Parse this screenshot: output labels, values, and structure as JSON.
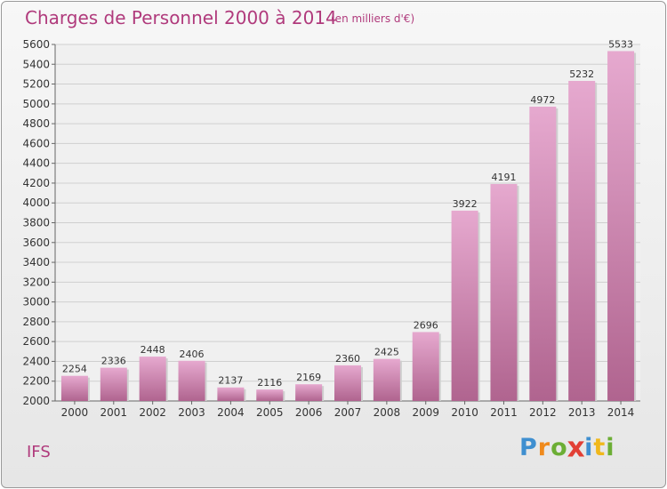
{
  "chart_data": {
    "type": "bar",
    "title": "Charges de Personnel 2000 à 2014",
    "subtitle": "(en milliers d'€)",
    "categories": [
      "2000",
      "2001",
      "2002",
      "2003",
      "2004",
      "2005",
      "2006",
      "2007",
      "2008",
      "2009",
      "2010",
      "2011",
      "2012",
      "2013",
      "2014"
    ],
    "values": [
      2254,
      2336,
      2448,
      2406,
      2137,
      2116,
      2169,
      2360,
      2425,
      2696,
      3922,
      4191,
      4972,
      5232,
      5533
    ],
    "ylim": [
      2000,
      5600
    ],
    "yticks": [
      2000,
      2200,
      2400,
      2600,
      2800,
      3000,
      3200,
      3400,
      3600,
      3800,
      4000,
      4200,
      4400,
      4600,
      4800,
      5000,
      5200,
      5400,
      5600
    ],
    "grid": true,
    "bar_color_light": "#e6a9cf",
    "bar_color_dark": "#b0648f"
  },
  "place_label": "IFS",
  "logo": {
    "letters": [
      {
        "ch": "P",
        "color": "#3f8fd0"
      },
      {
        "ch": "r",
        "color": "#f08a1c"
      },
      {
        "ch": "o",
        "color": "#6cae35"
      },
      {
        "ch": "x",
        "color": "#e23f35"
      },
      {
        "ch": "i",
        "color": "#3f8fd0"
      },
      {
        "ch": "t",
        "color": "#f0b81c"
      },
      {
        "ch": "i",
        "color": "#6cae35"
      }
    ]
  }
}
